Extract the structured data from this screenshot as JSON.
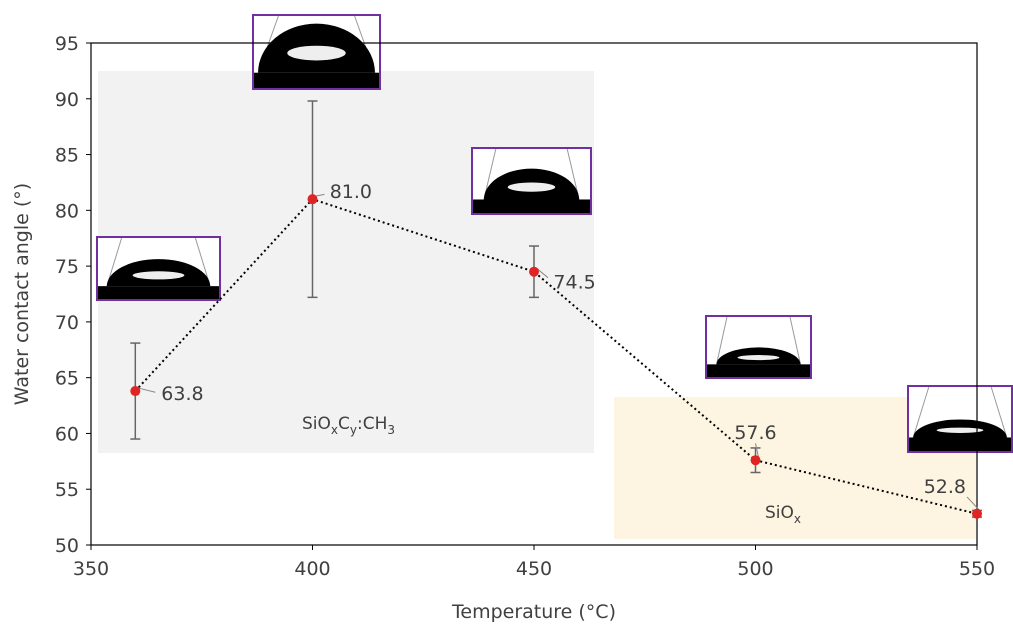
{
  "chart_data": {
    "type": "line",
    "x_label": "Temperature (°C)",
    "y_label": "Water contact angle (°)",
    "x": [
      360,
      400,
      450,
      500,
      550
    ],
    "series": [
      {
        "color": "#e02424",
        "values": [
          63.8,
          81.0,
          74.5,
          57.6,
          52.8
        ],
        "value_labels": [
          "63.8",
          "81.0",
          "74.5",
          "57.6",
          "52.8"
        ],
        "errors": [
          4.3,
          8.8,
          2.3,
          1.1,
          0.3
        ]
      }
    ],
    "xlim": [
      350,
      550
    ],
    "xticks": [
      350,
      400,
      450,
      500,
      550
    ],
    "ylim": [
      50,
      95
    ],
    "yticks": [
      50,
      55,
      60,
      65,
      70,
      75,
      80,
      85,
      90,
      95
    ],
    "grid": false,
    "annotations": [
      {
        "parts": [
          {
            "text": "SiO"
          },
          {
            "text": "x",
            "sub": true
          },
          {
            "text": "C"
          },
          {
            "text": "y",
            "sub": true
          },
          {
            "text": ":CH"
          },
          {
            "text": "3",
            "sub": true
          }
        ]
      },
      {
        "parts": [
          {
            "text": "SiO"
          },
          {
            "text": "x",
            "sub": true
          }
        ]
      }
    ]
  }
}
